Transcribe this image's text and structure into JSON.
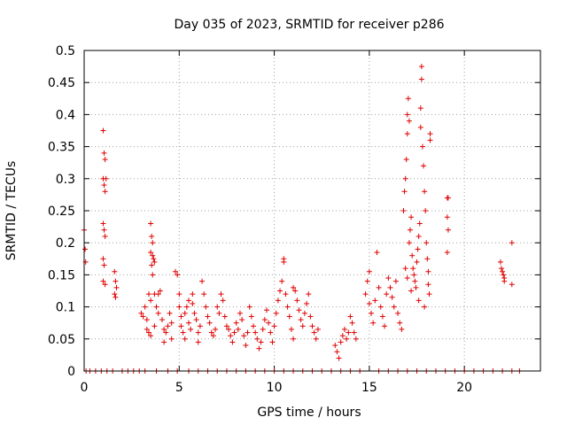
{
  "chart_data": {
    "type": "scatter",
    "title": "Day 035 of 2023, SRMTID for receiver p286",
    "xlabel": "GPS time / hours",
    "ylabel": "SRMTID / TECUs",
    "xlim": [
      0,
      24
    ],
    "ylim": [
      0,
      0.5
    ],
    "xticks": [
      0,
      5,
      10,
      15,
      20
    ],
    "xtick_labels": [
      "0",
      "5",
      "10",
      "15",
      "20"
    ],
    "yticks": [
      0,
      0.05,
      0.1,
      0.15,
      0.2,
      0.25,
      0.3,
      0.35,
      0.4,
      0.45,
      0.5
    ],
    "ytick_labels": [
      "0",
      "0.05",
      "0.1",
      "0.15",
      "0.2",
      "0.25",
      "0.3",
      "0.35",
      "0.4",
      "0.45",
      "0.5"
    ],
    "grid": true,
    "marker": "+",
    "color": "#e00000",
    "series": [
      {
        "name": "SRMTID p286",
        "points": [
          [
            0.0,
            0.22
          ],
          [
            0.05,
            0.19
          ],
          [
            0.08,
            0.17
          ],
          [
            0.1,
            0.0
          ],
          [
            0.3,
            0.0
          ],
          [
            0.6,
            0.0
          ],
          [
            1.0,
            0.375
          ],
          [
            1.05,
            0.34
          ],
          [
            1.1,
            0.33
          ],
          [
            1.0,
            0.3
          ],
          [
            1.05,
            0.29
          ],
          [
            1.1,
            0.28
          ],
          [
            1.15,
            0.3
          ],
          [
            1.0,
            0.23
          ],
          [
            1.05,
            0.22
          ],
          [
            1.1,
            0.21
          ],
          [
            1.0,
            0.175
          ],
          [
            1.05,
            0.165
          ],
          [
            1.0,
            0.14
          ],
          [
            1.1,
            0.135
          ],
          [
            0.9,
            0.0
          ],
          [
            1.2,
            0.0
          ],
          [
            1.5,
            0.0
          ],
          [
            1.6,
            0.155
          ],
          [
            1.65,
            0.14
          ],
          [
            1.7,
            0.13
          ],
          [
            1.6,
            0.12
          ],
          [
            1.65,
            0.115
          ],
          [
            2.0,
            0.0
          ],
          [
            2.3,
            0.0
          ],
          [
            2.6,
            0.0
          ],
          [
            2.9,
            0.0
          ],
          [
            3.0,
            0.09
          ],
          [
            3.1,
            0.085
          ],
          [
            3.2,
            0.1
          ],
          [
            3.3,
            0.08
          ],
          [
            3.3,
            0.065
          ],
          [
            3.4,
            0.06
          ],
          [
            3.4,
            0.12
          ],
          [
            3.5,
            0.11
          ],
          [
            3.5,
            0.23
          ],
          [
            3.55,
            0.21
          ],
          [
            3.6,
            0.2
          ],
          [
            3.5,
            0.185
          ],
          [
            3.6,
            0.18
          ],
          [
            3.65,
            0.175
          ],
          [
            3.7,
            0.17
          ],
          [
            3.55,
            0.165
          ],
          [
            3.6,
            0.15
          ],
          [
            3.7,
            0.12
          ],
          [
            3.8,
            0.1
          ],
          [
            3.9,
            0.09
          ],
          [
            3.5,
            0.055
          ],
          [
            3.7,
            0.07
          ],
          [
            3.9,
            0.12
          ],
          [
            4.0,
            0.125
          ],
          [
            4.1,
            0.08
          ],
          [
            4.2,
            0.065
          ],
          [
            4.3,
            0.06
          ],
          [
            4.2,
            0.045
          ],
          [
            4.4,
            0.07
          ],
          [
            4.5,
            0.09
          ],
          [
            4.6,
            0.075
          ],
          [
            4.6,
            0.05
          ],
          [
            3.2,
            0.0
          ],
          [
            3.8,
            0.0
          ],
          [
            4.4,
            0.0
          ],
          [
            4.9,
            0.0
          ],
          [
            4.8,
            0.155
          ],
          [
            4.9,
            0.15
          ],
          [
            5.0,
            0.12
          ],
          [
            5.0,
            0.1
          ],
          [
            5.1,
            0.085
          ],
          [
            5.1,
            0.07
          ],
          [
            5.2,
            0.06
          ],
          [
            5.3,
            0.05
          ],
          [
            5.3,
            0.09
          ],
          [
            5.4,
            0.1
          ],
          [
            5.5,
            0.11
          ],
          [
            5.5,
            0.075
          ],
          [
            5.6,
            0.065
          ],
          [
            5.7,
            0.12
          ],
          [
            5.7,
            0.105
          ],
          [
            5.8,
            0.09
          ],
          [
            5.9,
            0.08
          ],
          [
            6.0,
            0.06
          ],
          [
            6.0,
            0.045
          ],
          [
            6.1,
            0.07
          ],
          [
            6.2,
            0.14
          ],
          [
            6.3,
            0.12
          ],
          [
            6.4,
            0.1
          ],
          [
            6.5,
            0.085
          ],
          [
            6.6,
            0.075
          ],
          [
            6.7,
            0.06
          ],
          [
            6.8,
            0.055
          ],
          [
            6.9,
            0.065
          ],
          [
            7.0,
            0.1
          ],
          [
            7.1,
            0.09
          ],
          [
            7.2,
            0.12
          ],
          [
            7.3,
            0.11
          ],
          [
            5.5,
            0.0
          ],
          [
            6.0,
            0.0
          ],
          [
            6.5,
            0.0
          ],
          [
            7.0,
            0.0
          ],
          [
            7.4,
            0.085
          ],
          [
            7.5,
            0.07
          ],
          [
            7.6,
            0.065
          ],
          [
            7.7,
            0.055
          ],
          [
            7.8,
            0.045
          ],
          [
            7.9,
            0.06
          ],
          [
            8.0,
            0.075
          ],
          [
            8.1,
            0.065
          ],
          [
            8.2,
            0.09
          ],
          [
            8.3,
            0.08
          ],
          [
            8.4,
            0.055
          ],
          [
            8.5,
            0.04
          ],
          [
            8.6,
            0.06
          ],
          [
            8.7,
            0.1
          ],
          [
            8.8,
            0.085
          ],
          [
            8.9,
            0.07
          ],
          [
            9.0,
            0.06
          ],
          [
            9.1,
            0.05
          ],
          [
            9.2,
            0.035
          ],
          [
            9.3,
            0.045
          ],
          [
            9.4,
            0.065
          ],
          [
            9.5,
            0.08
          ],
          [
            9.6,
            0.095
          ],
          [
            9.7,
            0.075
          ],
          [
            7.5,
            0.0
          ],
          [
            8.0,
            0.0
          ],
          [
            8.5,
            0.0
          ],
          [
            9.0,
            0.0
          ],
          [
            9.8,
            0.06
          ],
          [
            9.9,
            0.045
          ],
          [
            10.0,
            0.07
          ],
          [
            10.1,
            0.09
          ],
          [
            10.2,
            0.11
          ],
          [
            10.3,
            0.125
          ],
          [
            10.4,
            0.14
          ],
          [
            10.5,
            0.17
          ],
          [
            10.5,
            0.175
          ],
          [
            10.6,
            0.12
          ],
          [
            10.7,
            0.1
          ],
          [
            10.8,
            0.085
          ],
          [
            10.9,
            0.065
          ],
          [
            11.0,
            0.05
          ],
          [
            11.0,
            0.13
          ],
          [
            11.1,
            0.125
          ],
          [
            11.2,
            0.11
          ],
          [
            11.3,
            0.095
          ],
          [
            11.4,
            0.08
          ],
          [
            11.5,
            0.07
          ],
          [
            11.6,
            0.09
          ],
          [
            11.7,
            0.105
          ],
          [
            11.8,
            0.12
          ],
          [
            11.9,
            0.085
          ],
          [
            12.0,
            0.07
          ],
          [
            12.1,
            0.06
          ],
          [
            12.2,
            0.05
          ],
          [
            12.3,
            0.065
          ],
          [
            9.5,
            0.0
          ],
          [
            10.0,
            0.0
          ],
          [
            10.5,
            0.0
          ],
          [
            11.0,
            0.0
          ],
          [
            11.5,
            0.0
          ],
          [
            12.0,
            0.0
          ],
          [
            12.5,
            0.0
          ],
          [
            13.0,
            0.0
          ],
          [
            13.2,
            0.04
          ],
          [
            13.3,
            0.03
          ],
          [
            13.4,
            0.02
          ],
          [
            13.5,
            0.045
          ],
          [
            13.6,
            0.055
          ],
          [
            13.7,
            0.065
          ],
          [
            13.8,
            0.05
          ],
          [
            13.9,
            0.06
          ],
          [
            14.0,
            0.085
          ],
          [
            14.1,
            0.075
          ],
          [
            14.2,
            0.06
          ],
          [
            14.3,
            0.05
          ],
          [
            13.5,
            0.0
          ],
          [
            14.0,
            0.0
          ],
          [
            14.5,
            0.0
          ],
          [
            14.8,
            0.12
          ],
          [
            14.9,
            0.14
          ],
          [
            15.0,
            0.155
          ],
          [
            15.0,
            0.105
          ],
          [
            15.1,
            0.09
          ],
          [
            15.2,
            0.075
          ],
          [
            15.3,
            0.11
          ],
          [
            15.4,
            0.185
          ],
          [
            15.5,
            0.13
          ],
          [
            15.6,
            0.1
          ],
          [
            15.7,
            0.085
          ],
          [
            15.8,
            0.07
          ],
          [
            15.9,
            0.12
          ],
          [
            16.0,
            0.145
          ],
          [
            16.1,
            0.13
          ],
          [
            16.2,
            0.115
          ],
          [
            16.3,
            0.1
          ],
          [
            16.4,
            0.14
          ],
          [
            16.5,
            0.09
          ],
          [
            16.6,
            0.075
          ],
          [
            16.7,
            0.065
          ],
          [
            16.8,
            0.25
          ],
          [
            16.85,
            0.28
          ],
          [
            16.9,
            0.3
          ],
          [
            16.95,
            0.33
          ],
          [
            17.0,
            0.37
          ],
          [
            17.0,
            0.4
          ],
          [
            17.05,
            0.425
          ],
          [
            17.1,
            0.39
          ],
          [
            17.1,
            0.2
          ],
          [
            17.15,
            0.22
          ],
          [
            17.2,
            0.24
          ],
          [
            17.25,
            0.18
          ],
          [
            17.3,
            0.16
          ],
          [
            17.35,
            0.15
          ],
          [
            17.4,
            0.14
          ],
          [
            17.45,
            0.13
          ],
          [
            17.5,
            0.17
          ],
          [
            17.55,
            0.19
          ],
          [
            17.6,
            0.21
          ],
          [
            17.65,
            0.23
          ],
          [
            17.7,
            0.38
          ],
          [
            17.7,
            0.41
          ],
          [
            17.75,
            0.455
          ],
          [
            17.75,
            0.475
          ],
          [
            17.8,
            0.35
          ],
          [
            17.85,
            0.32
          ],
          [
            17.9,
            0.28
          ],
          [
            17.95,
            0.25
          ],
          [
            18.0,
            0.2
          ],
          [
            18.05,
            0.175
          ],
          [
            18.1,
            0.155
          ],
          [
            18.1,
            0.135
          ],
          [
            18.15,
            0.12
          ],
          [
            18.2,
            0.36
          ],
          [
            18.2,
            0.37
          ],
          [
            17.6,
            0.11
          ],
          [
            17.9,
            0.1
          ],
          [
            16.9,
            0.16
          ],
          [
            17.0,
            0.145
          ],
          [
            17.2,
            0.125
          ],
          [
            15.5,
            0.0
          ],
          [
            16.0,
            0.0
          ],
          [
            16.5,
            0.0
          ],
          [
            17.0,
            0.0
          ],
          [
            17.5,
            0.0
          ],
          [
            18.0,
            0.0
          ],
          [
            18.5,
            0.0
          ],
          [
            19.0,
            0.0
          ],
          [
            19.5,
            0.0
          ],
          [
            20.0,
            0.0
          ],
          [
            20.5,
            0.0
          ],
          [
            21.0,
            0.0
          ],
          [
            21.5,
            0.0
          ],
          [
            22.0,
            0.0
          ],
          [
            22.5,
            0.0
          ],
          [
            22.9,
            0.0
          ],
          [
            19.1,
            0.27
          ],
          [
            19.15,
            0.27
          ],
          [
            19.1,
            0.24
          ],
          [
            19.15,
            0.22
          ],
          [
            19.1,
            0.185
          ],
          [
            21.9,
            0.17
          ],
          [
            21.95,
            0.16
          ],
          [
            22.0,
            0.155
          ],
          [
            22.05,
            0.15
          ],
          [
            22.1,
            0.145
          ],
          [
            22.1,
            0.14
          ],
          [
            22.5,
            0.2
          ],
          [
            22.5,
            0.135
          ]
        ]
      }
    ]
  }
}
